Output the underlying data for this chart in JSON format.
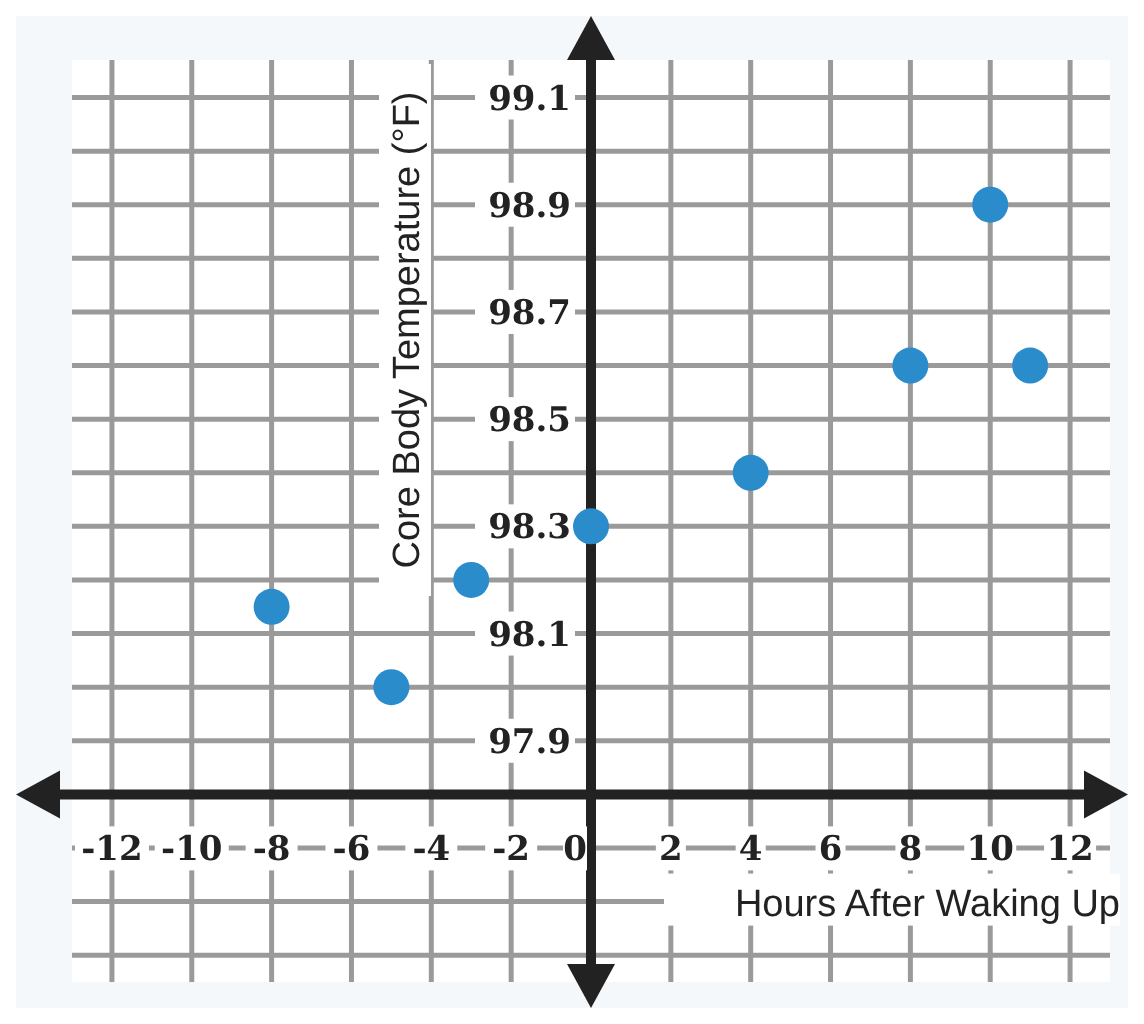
{
  "chart_data": {
    "type": "scatter",
    "xlabel": "Hours After Waking Up",
    "ylabel": "Core Body Temperature (°F)",
    "x": [
      -8,
      -5,
      -3,
      0,
      4,
      8,
      10,
      11
    ],
    "series": [
      {
        "color": "#2b8ccc",
        "values": [
          98.15,
          98.0,
          98.2,
          98.3,
          98.4,
          98.6,
          98.9,
          98.6
        ]
      }
    ],
    "xlim": [
      -13,
      13
    ],
    "xticks": [
      -12,
      -10,
      -8,
      -6,
      -4,
      -2,
      0,
      2,
      4,
      6,
      8,
      10,
      12
    ],
    "ylim": [
      97.45,
      99.17
    ],
    "yticks": [
      {
        "value": 97.5,
        "label": null
      },
      {
        "value": 97.6,
        "label": null
      },
      {
        "value": 97.7,
        "label": null
      },
      {
        "value": 97.8,
        "label": null
      },
      97.9,
      {
        "value": 98.0,
        "label": null
      },
      98.1,
      {
        "value": 98.2,
        "label": null
      },
      98.3,
      {
        "value": 98.4,
        "label": null
      },
      98.5,
      {
        "value": 98.6,
        "label": null
      },
      98.7,
      {
        "value": 98.8,
        "label": null
      },
      98.9,
      {
        "value": 99.0,
        "label": null
      },
      99.1
    ],
    "grid": true,
    "marker": "circle"
  }
}
